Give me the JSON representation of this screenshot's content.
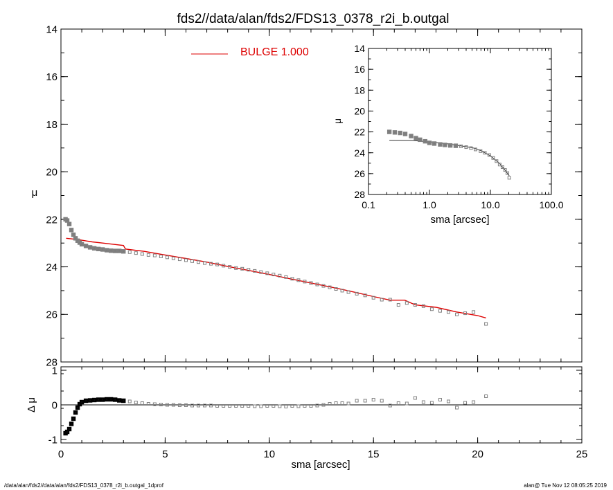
{
  "title": "fds2//data/alan/fds2/FDS13_0378_r2i_b.outgal",
  "footer": {
    "left": "/data/alan/fds2//data/alan/fds2/FDS13_0378_r2i_b.outgal_1dprof",
    "right": "alan@  Tue Nov 12 08:05:25 2019"
  },
  "colors": {
    "model": "#dd0000",
    "data": "#808080",
    "axes": "#000000"
  },
  "chart_data": [
    {
      "type": "scatter",
      "role": "main-profile",
      "xlabel": "",
      "ylabel": "μ",
      "xlim": [
        0,
        25
      ],
      "ylim": [
        28,
        14
      ],
      "x_ticks": [
        0,
        5,
        10,
        15,
        20,
        25
      ],
      "y_ticks": [
        14,
        16,
        18,
        20,
        22,
        24,
        26,
        28
      ],
      "legend": {
        "label": "BULGE  1.000",
        "color": "#dd0000",
        "placement": "top-center"
      },
      "series": [
        {
          "kind": "model-line",
          "x": [
            0.25,
            0.8,
            1.5,
            2.0,
            2.5,
            3.0,
            3.1,
            4.0,
            5.0,
            6.0,
            7.0,
            8.0,
            9.0,
            10.0,
            11.0,
            12.0,
            13.0,
            13.5,
            14.0,
            15.0,
            15.8,
            16.5,
            17.0,
            18.0,
            19.0,
            20.0,
            20.4
          ],
          "y": [
            22.8,
            22.85,
            22.95,
            23.0,
            23.05,
            23.1,
            23.25,
            23.35,
            23.5,
            23.65,
            23.8,
            23.98,
            24.15,
            24.32,
            24.5,
            24.68,
            24.86,
            24.95,
            25.05,
            25.25,
            25.4,
            25.4,
            25.6,
            25.7,
            25.9,
            26.05,
            26.15
          ]
        },
        {
          "kind": "data-points",
          "x": [
            0.22,
            0.3,
            0.4,
            0.5,
            0.6,
            0.7,
            0.8,
            0.9,
            1.0,
            1.2,
            1.4,
            1.6,
            1.8,
            2.0,
            2.2,
            2.4,
            2.6,
            2.8,
            3.0,
            3.3,
            3.6,
            3.9,
            4.2,
            4.5,
            4.8,
            5.1,
            5.4,
            5.7,
            6.0,
            6.3,
            6.6,
            6.9,
            7.2,
            7.5,
            7.8,
            8.1,
            8.4,
            8.7,
            9.0,
            9.3,
            9.6,
            9.9,
            10.2,
            10.5,
            10.8,
            11.1,
            11.4,
            11.7,
            12.0,
            12.3,
            12.6,
            12.9,
            13.2,
            13.5,
            13.8,
            14.2,
            14.6,
            15.0,
            15.4,
            15.8,
            16.2,
            16.6,
            17.0,
            17.4,
            17.8,
            18.2,
            18.6,
            19.0,
            19.4,
            19.8,
            20.4
          ],
          "y": [
            22.0,
            22.05,
            22.2,
            22.45,
            22.65,
            22.8,
            22.9,
            22.98,
            23.05,
            23.12,
            23.18,
            23.22,
            23.25,
            23.27,
            23.3,
            23.32,
            23.33,
            23.33,
            23.35,
            23.38,
            23.42,
            23.46,
            23.5,
            23.52,
            23.56,
            23.6,
            23.64,
            23.68,
            23.72,
            23.76,
            23.8,
            23.84,
            23.87,
            23.9,
            23.95,
            24.0,
            24.05,
            24.08,
            24.12,
            24.17,
            24.22,
            24.27,
            24.32,
            24.37,
            24.43,
            24.5,
            24.56,
            24.62,
            24.68,
            24.74,
            24.8,
            24.86,
            24.93,
            25.0,
            25.06,
            25.13,
            25.2,
            25.3,
            25.38,
            25.38,
            25.6,
            25.52,
            25.6,
            25.65,
            25.78,
            25.85,
            25.9,
            26.0,
            25.95,
            25.9,
            26.4
          ]
        }
      ]
    },
    {
      "type": "scatter",
      "role": "residuals",
      "xlabel": "sma [arcsec]",
      "ylabel": "Δ μ",
      "xlim": [
        0,
        25
      ],
      "ylim": [
        -1.1,
        1.1
      ],
      "x_ticks": [
        0,
        5,
        10,
        15,
        20,
        25
      ],
      "y_ticks": [
        -1,
        0,
        1
      ],
      "reference_line": 0,
      "series": [
        {
          "kind": "data-points",
          "x": [
            0.22,
            0.3,
            0.4,
            0.5,
            0.6,
            0.7,
            0.8,
            0.9,
            1.0,
            1.2,
            1.4,
            1.6,
            1.8,
            2.0,
            2.2,
            2.4,
            2.6,
            2.8,
            3.0,
            3.3,
            3.6,
            3.9,
            4.2,
            4.5,
            4.8,
            5.1,
            5.4,
            5.7,
            6.0,
            6.3,
            6.6,
            6.9,
            7.2,
            7.5,
            7.8,
            8.1,
            8.4,
            8.7,
            9.0,
            9.3,
            9.6,
            9.9,
            10.2,
            10.5,
            10.8,
            11.1,
            11.4,
            11.7,
            12.0,
            12.3,
            12.6,
            12.9,
            13.2,
            13.5,
            13.8,
            14.2,
            14.6,
            15.0,
            15.4,
            15.8,
            16.2,
            16.6,
            17.0,
            17.4,
            17.8,
            18.2,
            18.6,
            19.0,
            19.4,
            19.8,
            20.4
          ],
          "y": [
            -0.82,
            -0.78,
            -0.7,
            -0.55,
            -0.4,
            -0.22,
            -0.08,
            0.02,
            0.08,
            0.12,
            0.13,
            0.14,
            0.15,
            0.15,
            0.16,
            0.16,
            0.15,
            0.13,
            0.12,
            0.1,
            0.07,
            0.05,
            0.03,
            0.02,
            0.01,
            0.0,
            0.0,
            -0.01,
            -0.01,
            -0.02,
            -0.02,
            -0.02,
            -0.02,
            -0.03,
            -0.03,
            -0.03,
            -0.03,
            -0.03,
            -0.03,
            -0.04,
            -0.04,
            -0.03,
            -0.03,
            -0.04,
            -0.05,
            -0.03,
            -0.04,
            -0.03,
            -0.03,
            -0.02,
            0.0,
            0.03,
            0.05,
            0.05,
            0.04,
            0.12,
            0.12,
            0.15,
            0.12,
            -0.02,
            0.05,
            0.04,
            0.2,
            0.08,
            0.06,
            0.15,
            0.1,
            -0.08,
            0.06,
            0.08,
            0.25
          ]
        }
      ]
    },
    {
      "type": "scatter",
      "role": "inset-log",
      "xlabel": "sma [arcsec]",
      "ylabel": "μ",
      "x_scale": "log",
      "xlim": [
        0.1,
        100
      ],
      "ylim": [
        28,
        14
      ],
      "x_ticks": [
        0.1,
        1,
        10,
        100
      ],
      "x_tick_labels": [
        "0.1",
        "1.0",
        "10.0",
        "100.0"
      ],
      "y_ticks": [
        14,
        16,
        18,
        20,
        22,
        24,
        26,
        28
      ],
      "placement": "top-right",
      "series": [
        {
          "kind": "model-line",
          "x": [
            0.22,
            0.5,
            1.0,
            2.0,
            3.0,
            5.0,
            7.0,
            10.0,
            14.0,
            17.0,
            20.4
          ],
          "y": [
            22.8,
            22.82,
            22.95,
            23.15,
            23.3,
            23.5,
            23.8,
            24.3,
            25.0,
            25.6,
            26.2
          ]
        },
        {
          "kind": "data-points",
          "x": [
            0.22,
            0.27,
            0.33,
            0.4,
            0.5,
            0.6,
            0.7,
            0.85,
            1.0,
            1.2,
            1.5,
            1.8,
            2.2,
            2.7,
            3.3,
            4.0,
            4.8,
            5.7,
            6.9,
            8.1,
            9.6,
            11.1,
            12.6,
            14.2,
            15.8,
            17.4,
            19.0,
            20.4
          ],
          "y": [
            22.0,
            22.05,
            22.1,
            22.2,
            22.4,
            22.6,
            22.75,
            22.9,
            23.05,
            23.12,
            23.2,
            23.25,
            23.3,
            23.33,
            23.38,
            23.46,
            23.56,
            23.68,
            23.84,
            24.0,
            24.22,
            24.5,
            24.8,
            25.13,
            25.38,
            25.65,
            25.95,
            26.4
          ]
        }
      ]
    }
  ]
}
